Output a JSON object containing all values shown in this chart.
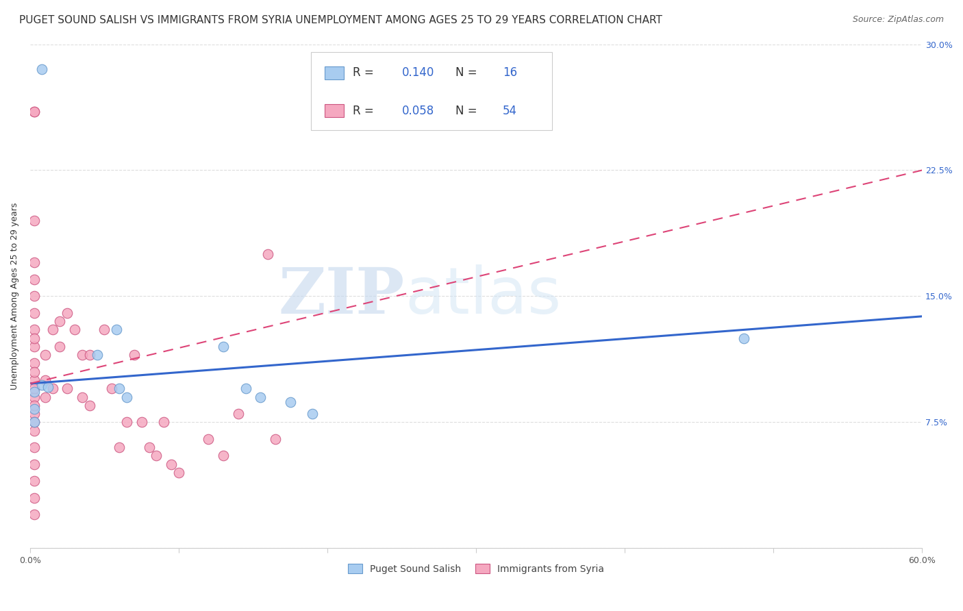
{
  "title": "PUGET SOUND SALISH VS IMMIGRANTS FROM SYRIA UNEMPLOYMENT AMONG AGES 25 TO 29 YEARS CORRELATION CHART",
  "source": "Source: ZipAtlas.com",
  "ylabel": "Unemployment Among Ages 25 to 29 years",
  "xlim": [
    0,
    0.6
  ],
  "ylim": [
    0,
    0.3
  ],
  "xticks": [
    0.0,
    0.1,
    0.2,
    0.3,
    0.4,
    0.5,
    0.6
  ],
  "yticks_right": [
    0.0,
    0.075,
    0.15,
    0.225,
    0.3
  ],
  "ytick_labels_right": [
    "",
    "7.5%",
    "15.0%",
    "22.5%",
    "30.0%"
  ],
  "watermark_zip": "ZIP",
  "watermark_atlas": "atlas",
  "blue_color": "#A8CCF0",
  "pink_color": "#F5A8C0",
  "blue_edge_color": "#6699CC",
  "pink_edge_color": "#CC5580",
  "blue_line_color": "#3366CC",
  "pink_line_color": "#DD4477",
  "blue_R": 0.14,
  "blue_N": 16,
  "pink_R": 0.058,
  "pink_N": 54,
  "blue_line_x": [
    0.0,
    0.6
  ],
  "blue_line_y": [
    0.098,
    0.138
  ],
  "pink_line_x": [
    0.0,
    0.6
  ],
  "pink_line_y": [
    0.098,
    0.225
  ],
  "blue_scatter_x": [
    0.008,
    0.008,
    0.012,
    0.045,
    0.058,
    0.06,
    0.065,
    0.13,
    0.145,
    0.155,
    0.175,
    0.19,
    0.48,
    0.003,
    0.003,
    0.003
  ],
  "blue_scatter_y": [
    0.285,
    0.097,
    0.096,
    0.115,
    0.13,
    0.095,
    0.09,
    0.12,
    0.095,
    0.09,
    0.087,
    0.08,
    0.125,
    0.093,
    0.083,
    0.075
  ],
  "pink_scatter_x": [
    0.003,
    0.003,
    0.003,
    0.003,
    0.003,
    0.003,
    0.003,
    0.003,
    0.003,
    0.003,
    0.003,
    0.003,
    0.003,
    0.003,
    0.003,
    0.003,
    0.003,
    0.003,
    0.003,
    0.003,
    0.003,
    0.003,
    0.003,
    0.003,
    0.01,
    0.01,
    0.01,
    0.015,
    0.015,
    0.02,
    0.02,
    0.025,
    0.025,
    0.03,
    0.035,
    0.035,
    0.04,
    0.04,
    0.05,
    0.055,
    0.06,
    0.065,
    0.07,
    0.075,
    0.08,
    0.085,
    0.09,
    0.095,
    0.1,
    0.12,
    0.13,
    0.14,
    0.16,
    0.165
  ],
  "pink_scatter_y": [
    0.26,
    0.26,
    0.195,
    0.17,
    0.15,
    0.14,
    0.13,
    0.12,
    0.11,
    0.1,
    0.09,
    0.08,
    0.07,
    0.06,
    0.05,
    0.04,
    0.03,
    0.02,
    0.16,
    0.125,
    0.105,
    0.095,
    0.085,
    0.075,
    0.115,
    0.1,
    0.09,
    0.13,
    0.095,
    0.135,
    0.12,
    0.14,
    0.095,
    0.13,
    0.115,
    0.09,
    0.115,
    0.085,
    0.13,
    0.095,
    0.06,
    0.075,
    0.115,
    0.075,
    0.06,
    0.055,
    0.075,
    0.05,
    0.045,
    0.065,
    0.055,
    0.08,
    0.175,
    0.065
  ],
  "legend_label_blue": "Puget Sound Salish",
  "legend_label_pink": "Immigrants from Syria",
  "title_fontsize": 11,
  "source_fontsize": 9,
  "axis_label_fontsize": 9,
  "tick_fontsize": 9,
  "legend_fontsize": 12,
  "background_color": "#FFFFFF",
  "grid_color": "#DDDDDD"
}
